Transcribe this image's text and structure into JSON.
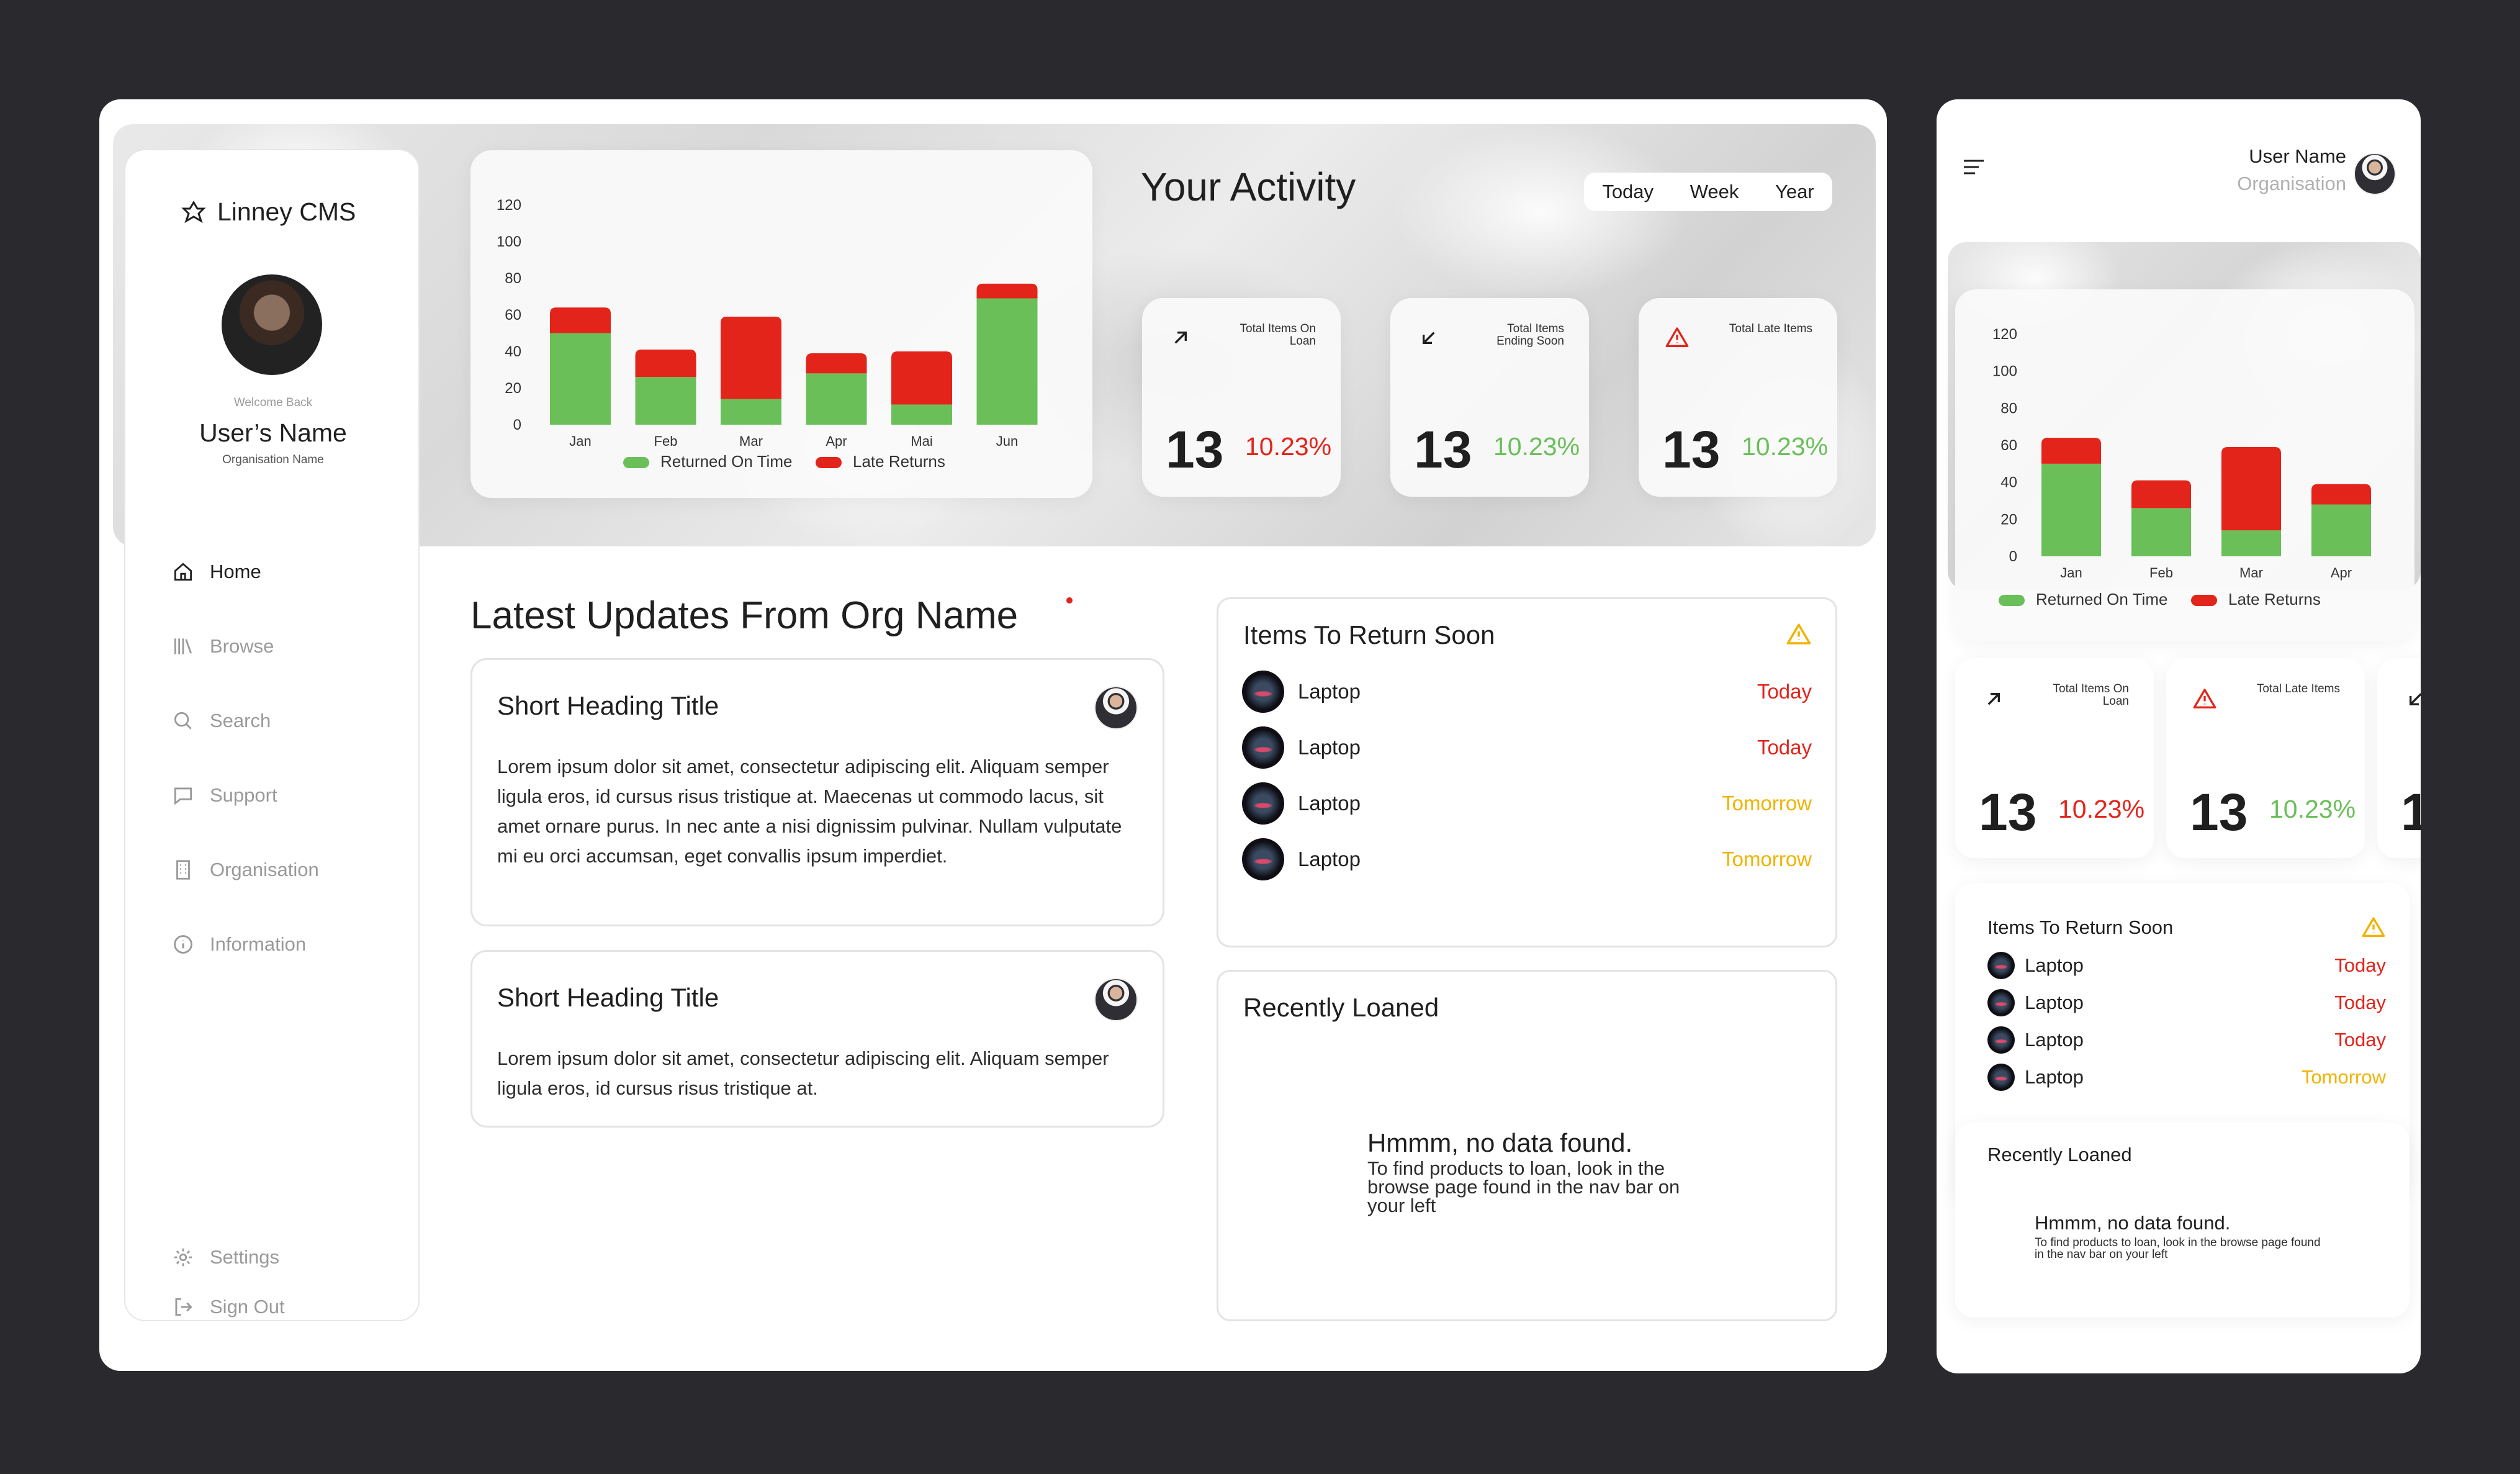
{
  "app": {
    "name": "Linney CMS"
  },
  "profile": {
    "welcome": "Welcome Back",
    "name": "User’s Name",
    "org": "Organisation Name"
  },
  "nav": [
    {
      "label": "Home",
      "icon": "home-icon",
      "active": true
    },
    {
      "label": "Browse",
      "icon": "library-icon",
      "active": false
    },
    {
      "label": "Search",
      "icon": "search-icon",
      "active": false
    },
    {
      "label": "Support",
      "icon": "chat-icon",
      "active": false
    },
    {
      "label": "Organisation",
      "icon": "building-icon",
      "active": false
    },
    {
      "label": "Information",
      "icon": "info-icon",
      "active": false
    }
  ],
  "nav_bottom": {
    "settings": "Settings",
    "signout": "Sign Out"
  },
  "activity": {
    "title": "Your Activity",
    "ranges": [
      "Today",
      "Week",
      "Year"
    ]
  },
  "stats": [
    {
      "label": "Total Items On Loan",
      "icon": "arrow-up-right-icon",
      "value": "13",
      "pct": "10.23%",
      "pct_color": "#e3241b"
    },
    {
      "label": "Total Items Ending Soon",
      "icon": "arrow-down-left-icon",
      "value": "13",
      "pct": "10.23%",
      "pct_color": "#6abf59"
    },
    {
      "label": "Total Late Items",
      "icon": "warning-icon",
      "value": "13",
      "pct": "10.23%",
      "pct_color": "#6abf59"
    }
  ],
  "chart_data": [
    {
      "type": "bar",
      "stacked": true,
      "categories": [
        "Jan",
        "Feb",
        "Mar",
        "Apr",
        "Mai",
        "Jun"
      ],
      "series": [
        {
          "name": "Returned On Time",
          "color": "#6abf59",
          "values": [
            50,
            26,
            14,
            28,
            11,
            69
          ]
        },
        {
          "name": "Late Returns",
          "color": "#e3241b",
          "values": [
            14,
            15,
            45,
            11,
            29,
            8
          ]
        }
      ],
      "yticks": [
        0,
        20,
        40,
        60,
        80,
        100,
        120
      ],
      "ylim": [
        0,
        120
      ],
      "legend": "bottom"
    },
    {
      "type": "bar",
      "stacked": true,
      "categories": [
        "Jan",
        "Feb",
        "Mar",
        "Apr"
      ],
      "series": [
        {
          "name": "Returned On Time",
          "color": "#6abf59",
          "values": [
            50,
            26,
            14,
            28
          ]
        },
        {
          "name": "Late Returns",
          "color": "#e3241b",
          "values": [
            14,
            15,
            45,
            11
          ]
        }
      ],
      "yticks": [
        0,
        20,
        40,
        60,
        80,
        100,
        120
      ],
      "ylim": [
        0,
        120
      ],
      "legend": "bottom"
    }
  ],
  "updates": {
    "title": "Latest Updates From Org Name",
    "posts": [
      {
        "heading": "Short Heading Title",
        "body": "Lorem ipsum dolor sit amet, consectetur adipiscing elit. Aliquam semper ligula eros, id cursus risus tristique at. Maecenas ut commodo lacus, sit amet ornare purus. In nec ante a nisi dignissim pulvinar. Nullam vulputate mi eu orci accumsan, eget convallis ipsum imperdiet."
      },
      {
        "heading": "Short Heading Title",
        "body": "Lorem ipsum dolor sit amet, consectetur adipiscing elit. Aliquam semper ligula eros, id cursus risus tristique at."
      }
    ]
  },
  "return_soon": {
    "title": "Items To Return Soon",
    "items": [
      {
        "name": "Laptop",
        "status": "Today",
        "color": "#e3241b"
      },
      {
        "name": "Laptop",
        "status": "Today",
        "color": "#e3241b"
      },
      {
        "name": "Laptop",
        "status": "Tomorrow",
        "color": "#f0b300"
      },
      {
        "name": "Laptop",
        "status": "Tomorrow",
        "color": "#f0b300"
      }
    ]
  },
  "recent": {
    "title": "Recently Loaned",
    "empty_title": "Hmmm, no data found.",
    "empty_body": "To find products to loan, look in the browse page found in the nav bar on your left"
  },
  "mobile": {
    "user": "User Name",
    "org": "Organisation",
    "stats": [
      {
        "label": "Total Items On Loan",
        "value": "13",
        "pct": "10.23%",
        "pct_color": "#e3241b"
      },
      {
        "label": "Total Late Items",
        "value": "13",
        "pct": "10.23%",
        "pct_color": "#6abf59"
      },
      {
        "value": "1"
      }
    ],
    "return_soon": {
      "title": "Items To Return Soon",
      "items": [
        {
          "name": "Laptop",
          "status": "Today",
          "color": "#e3241b"
        },
        {
          "name": "Laptop",
          "status": "Today",
          "color": "#e3241b"
        },
        {
          "name": "Laptop",
          "status": "Today",
          "color": "#e3241b"
        },
        {
          "name": "Laptop",
          "status": "Tomorrow",
          "color": "#f0b300"
        }
      ]
    },
    "recent": {
      "title": "Recently Loaned",
      "empty_title": "Hmmm, no data found.",
      "empty_body": "To find products to loan, look in the browse page found in the nav bar on your left"
    }
  }
}
